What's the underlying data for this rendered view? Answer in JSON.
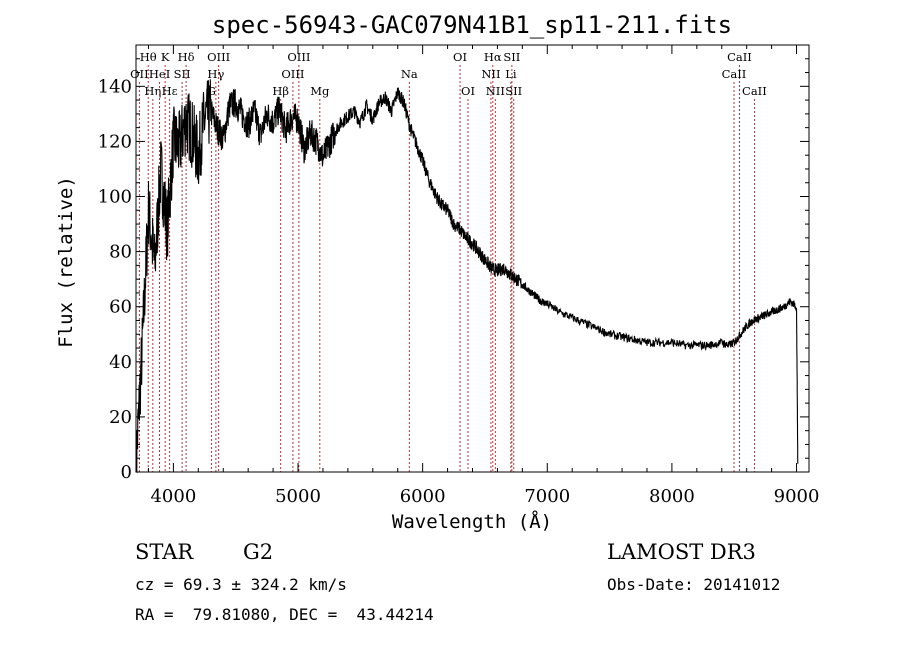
{
  "chart_data": {
    "type": "line",
    "title": "spec-56943-GAC079N41B1_sp11-211.fits",
    "xlabel": "Wavelength (Å)",
    "ylabel": "Flux (relative)",
    "xlim": [
      3700,
      9100
    ],
    "ylim": [
      0,
      155
    ],
    "x_ticks": [
      4000,
      5000,
      6000,
      7000,
      8000,
      9000
    ],
    "y_ticks": [
      0,
      20,
      40,
      60,
      80,
      100,
      120,
      140
    ],
    "series": [
      {
        "name": "flux",
        "x": [
          3700,
          3750,
          3800,
          3850,
          3900,
          3950,
          4000,
          4050,
          4100,
          4150,
          4200,
          4250,
          4300,
          4350,
          4400,
          4450,
          4500,
          4550,
          4600,
          4650,
          4700,
          4750,
          4800,
          4850,
          4900,
          4950,
          5000,
          5050,
          5100,
          5150,
          5200,
          5250,
          5300,
          5350,
          5400,
          5450,
          5500,
          5550,
          5600,
          5650,
          5700,
          5750,
          5800,
          5850,
          5900,
          5950,
          6000,
          6050,
          6100,
          6150,
          6200,
          6250,
          6300,
          6350,
          6400,
          6450,
          6500,
          6550,
          6600,
          6650,
          6700,
          6750,
          6800,
          6850,
          6900,
          6950,
          7000,
          7100,
          7200,
          7300,
          7400,
          7500,
          7600,
          7700,
          7800,
          7900,
          8000,
          8100,
          8200,
          8300,
          8400,
          8450,
          8500,
          8550,
          8600,
          8650,
          8700,
          8750,
          8800,
          8850,
          8900,
          8950,
          9000,
          9010
        ],
        "y": [
          2,
          45,
          95,
          75,
          110,
          88,
          120,
          118,
          128,
          123,
          115,
          128,
          131,
          125,
          121,
          133,
          134,
          130,
          126,
          131,
          122,
          130,
          127,
          132,
          124,
          129,
          128,
          117,
          123,
          120,
          114,
          119,
          124,
          127,
          129,
          131,
          127,
          133,
          128,
          134,
          136,
          131,
          138,
          134,
          125,
          119,
          113,
          106,
          101,
          97,
          95,
          90,
          88,
          85,
          83,
          80,
          77,
          74,
          73,
          74,
          72,
          70,
          68,
          66,
          64,
          62,
          61,
          58,
          56,
          54,
          52,
          50,
          49,
          48,
          47,
          47,
          47,
          46,
          46,
          46,
          47,
          46,
          47,
          50,
          53,
          55,
          56,
          57,
          58,
          59,
          60,
          62,
          60,
          3
        ]
      }
    ],
    "line_markers": [
      {
        "label": "Hθ",
        "x": 3798,
        "row": 0
      },
      {
        "label": "OII",
        "x": 3727,
        "row": 1
      },
      {
        "label": "Hη",
        "x": 3835,
        "row": 2
      },
      {
        "label": "K",
        "x": 3934,
        "row": 0
      },
      {
        "label": "HeI",
        "x": 3889,
        "row": 1
      },
      {
        "label": "Hε",
        "x": 3970,
        "row": 2
      },
      {
        "label": "Hδ",
        "x": 4102,
        "row": 0
      },
      {
        "label": "SII",
        "x": 4070,
        "row": 1
      },
      {
        "label": "OIII",
        "x": 4363,
        "row": 0
      },
      {
        "label": "Hγ",
        "x": 4341,
        "row": 1
      },
      {
        "label": "G",
        "x": 4305,
        "row": 2
      },
      {
        "label": "OIII",
        "x": 5007,
        "row": 0
      },
      {
        "label": "OIII",
        "x": 4959,
        "row": 1
      },
      {
        "label": "Hβ",
        "x": 4861,
        "row": 2
      },
      {
        "label": "Mg",
        "x": 5175,
        "row": 2
      },
      {
        "label": "Na",
        "x": 5893,
        "row": 1
      },
      {
        "label": "OI",
        "x": 6300,
        "row": 0
      },
      {
        "label": "OI",
        "x": 6364,
        "row": 2
      },
      {
        "label": "Hα",
        "x": 6563,
        "row": 0
      },
      {
        "label": "SII",
        "x": 6716,
        "row": 0
      },
      {
        "label": "NII",
        "x": 6548,
        "row": 1
      },
      {
        "label": "Li",
        "x": 6708,
        "row": 1
      },
      {
        "label": "NII",
        "x": 6583,
        "row": 2
      },
      {
        "label": "SII",
        "x": 6731,
        "row": 2
      },
      {
        "label": "CaII",
        "x": 8542,
        "row": 0
      },
      {
        "label": "CaII",
        "x": 8498,
        "row": 1
      },
      {
        "label": "CaII",
        "x": 8662,
        "row": 2
      }
    ]
  },
  "info": {
    "object_class": "STAR",
    "subclass": "G2",
    "survey": "LAMOST DR3",
    "redshift_line": "cz = 69.3 ± 324.2 km/s",
    "obs_date_line": "Obs-Date: 20141012",
    "coords_line": "RA =  79.81080, DEC =  43.44214"
  },
  "colors": {
    "spectrum": "#000000",
    "line_marker": "#b02020",
    "axes": "#000000",
    "background": "#ffffff"
  }
}
